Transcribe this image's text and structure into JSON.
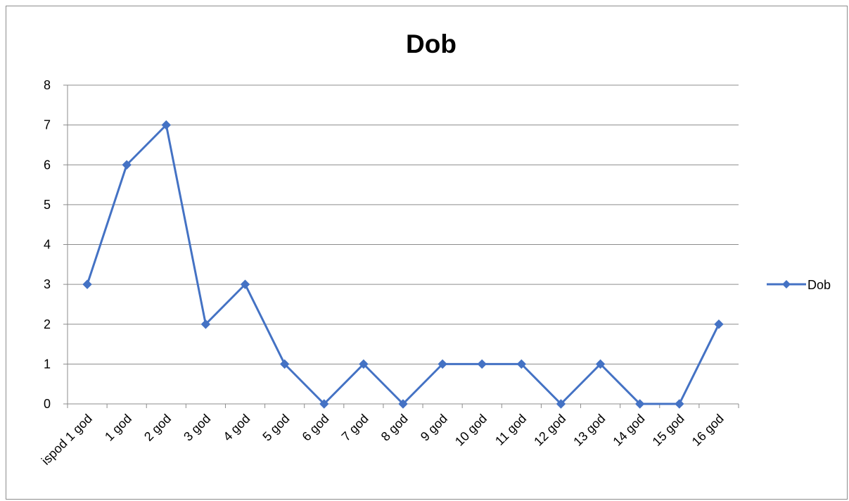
{
  "chart_data": {
    "type": "line",
    "title": "Dob",
    "xlabel": "",
    "ylabel": "",
    "categories": [
      "ispod 1 god",
      "1 god",
      "2 god",
      "3 god",
      "4 god",
      "5 god",
      "6 god",
      "7 god",
      "8 god",
      "9 god",
      "10 god",
      "11 god",
      "12 god",
      "13 god",
      "14 god",
      "15 god",
      "16 god"
    ],
    "series": [
      {
        "name": "Dob",
        "values": [
          3,
          6,
          7,
          2,
          3,
          1,
          0,
          1,
          0,
          1,
          1,
          1,
          0,
          1,
          0,
          0,
          2
        ],
        "color": "#4472C4",
        "marker": "diamond"
      }
    ],
    "ylim": [
      0,
      8
    ],
    "yticks": [
      0,
      1,
      2,
      3,
      4,
      5,
      6,
      7,
      8
    ],
    "grid": true,
    "legend_position": "right"
  }
}
